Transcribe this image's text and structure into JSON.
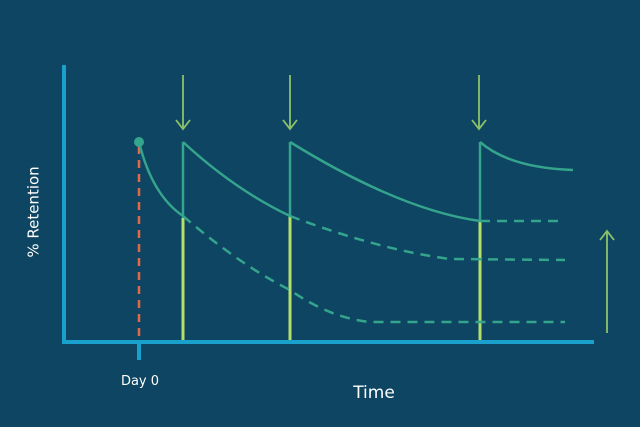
{
  "y_axis_label": "% Retention",
  "day_label": "Day 0",
  "x_axis_label": "Time"
}
